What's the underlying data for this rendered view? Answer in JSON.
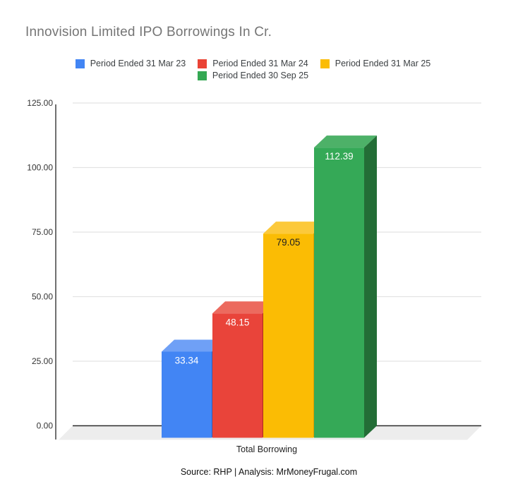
{
  "title": "Innovision Limited IPO Borrowings In Cr.",
  "footer": "Source: RHP | Analysis: MrMoneyFrugal.com",
  "legend": {
    "items": [
      {
        "label": "Period Ended 31 Mar 23",
        "color": "#4285F4"
      },
      {
        "label": "Period Ended 31 Mar 24",
        "color": "#EA4335"
      },
      {
        "label": "Period Ended 31 Mar 25",
        "color": "#FBBC04"
      },
      {
        "label": "Period Ended 30 Sep 25",
        "color": "#34A853"
      }
    ]
  },
  "colors": {
    "background": "#FFFFFF",
    "title_text": "#757575",
    "legend_text": "#3C4043",
    "tick_text": "#333333",
    "gridline": "#E3E3E3",
    "zero_line": "#2B2B2B",
    "axis_line": "#333333",
    "floor": "#EDEDED",
    "xlabel_text": "#222222",
    "footer_text": "#111111"
  },
  "chart_data": {
    "type": "bar",
    "style": "3d-column",
    "title": "Innovision Limited IPO Borrowings In Cr.",
    "categories": [
      "Total Borrowing"
    ],
    "xlabel": "Total Borrowing",
    "ylabel": "",
    "ylim": [
      0,
      125
    ],
    "ytick_step": 25,
    "yticks": [
      "0.00",
      "25.00",
      "50.00",
      "75.00",
      "100.00",
      "125.00"
    ],
    "grid": true,
    "legend_position": "top",
    "series": [
      {
        "name": "Period Ended 31 Mar 23",
        "values": [
          33.34
        ],
        "data_label": "33.34",
        "label_color": "#FFFFFF",
        "colors": {
          "front": "#4285F4",
          "top": "#6FA0F6",
          "side": "#2C5FBF"
        }
      },
      {
        "name": "Period Ended 31 Mar 24",
        "values": [
          48.15
        ],
        "data_label": "48.15",
        "label_color": "#FFFFFF",
        "colors": {
          "front": "#E9443A",
          "top": "#EC6A5E",
          "side": "#AB2B1E"
        }
      },
      {
        "name": "Period Ended 31 Mar 25",
        "values": [
          79.05
        ],
        "data_label": "79.05",
        "label_color": "#212121",
        "colors": {
          "front": "#FBBC04",
          "top": "#FCC93B",
          "side": "#DC9F02"
        }
      },
      {
        "name": "Period Ended 30 Sep 25",
        "values": [
          112.39
        ],
        "data_label": "112.39",
        "label_color": "#FFFFFF",
        "colors": {
          "front": "#35A957",
          "top": "#4DB168",
          "side": "#236D36"
        }
      }
    ]
  }
}
